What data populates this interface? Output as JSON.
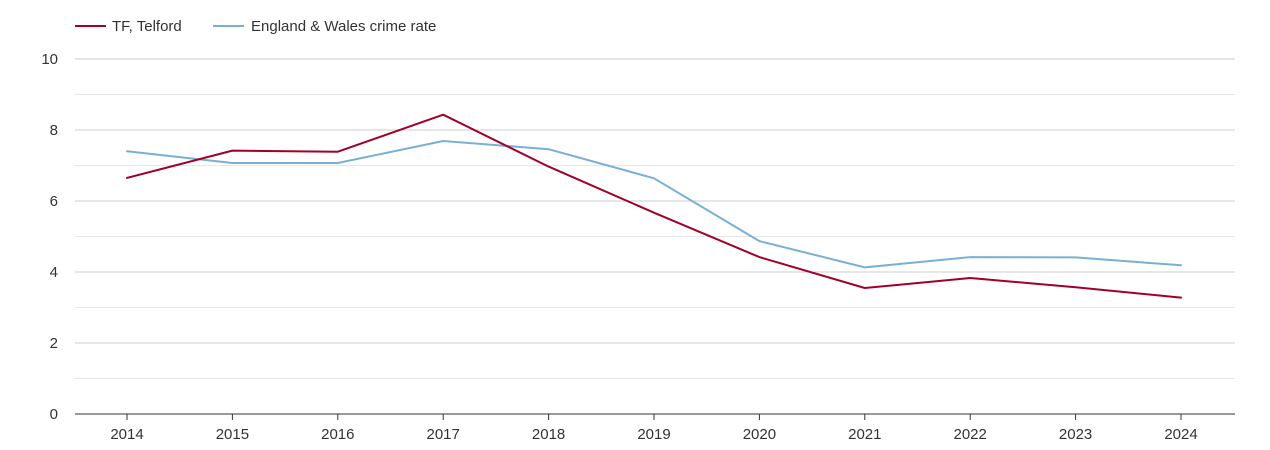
{
  "chart_data": {
    "type": "line",
    "title": "",
    "xlabel": "",
    "ylabel": "",
    "categories": [
      "2014",
      "2015",
      "2016",
      "2017",
      "2018",
      "2019",
      "2020",
      "2021",
      "2022",
      "2023",
      "2024"
    ],
    "ylim": [
      0,
      10
    ],
    "yticks": [
      "0",
      "2",
      "4",
      "6",
      "8",
      "10"
    ],
    "grid": true,
    "legend_position": "top-left",
    "series": [
      {
        "name": "TF, Telford",
        "color": "#a0002a",
        "values": [
          6.65,
          7.42,
          7.39,
          8.43,
          6.97,
          5.67,
          4.42,
          3.55,
          3.83,
          3.57,
          3.28
        ]
      },
      {
        "name": "England & Wales crime rate",
        "color": "#7aafd4",
        "values": [
          7.4,
          7.07,
          7.07,
          7.69,
          7.46,
          6.64,
          4.87,
          4.13,
          4.42,
          4.41,
          4.19
        ]
      }
    ]
  }
}
